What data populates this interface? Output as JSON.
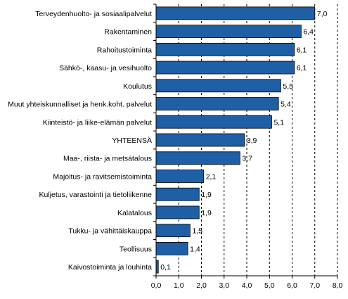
{
  "chart_data": {
    "type": "bar",
    "orientation": "horizontal",
    "categories": [
      "Terveydenhuolto- ja sosiaalipalvelut",
      "Rakentaminen",
      "Rahoitustoiminta",
      "Sähkö-, kaasu- ja vesihuolto",
      "Koulutus",
      "Muut yhteiskunnalliset ja henk.koht. palvelut",
      "Kiinteistö- ja liike-elämän palvelut",
      "YHTEENSÄ",
      "Maa-, riista- ja metsätalous",
      "Majoitus- ja ravitsemistoiminta",
      "Kuljetus, varastointi ja tietoliikenne",
      "Kalatalous",
      "Tukku- ja vähittäiskauppa",
      "Teollisuus",
      "Kaivostoiminta ja louhinta"
    ],
    "values": [
      7.0,
      6.4,
      6.1,
      6.1,
      5.5,
      5.4,
      5.1,
      3.9,
      3.7,
      2.1,
      1.9,
      1.9,
      1.5,
      1.4,
      0.1
    ],
    "value_labels": [
      "7,0",
      "6,4",
      "6,1",
      "6,1",
      "5,5",
      "5,4",
      "5,1",
      "3,9",
      "3,7",
      "2,1",
      "1,9",
      "1,9",
      "1,5",
      "1,4",
      "0,1"
    ],
    "xlim": [
      0,
      8
    ],
    "xticks": [
      "0,0",
      "1,0",
      "2,0",
      "3,0",
      "4,0",
      "5,0",
      "6,0",
      "7,0",
      "8,0"
    ],
    "grid": "vertical dashed",
    "title": "",
    "xlabel": "",
    "ylabel": "",
    "bar_color": "#1f5fa6"
  }
}
